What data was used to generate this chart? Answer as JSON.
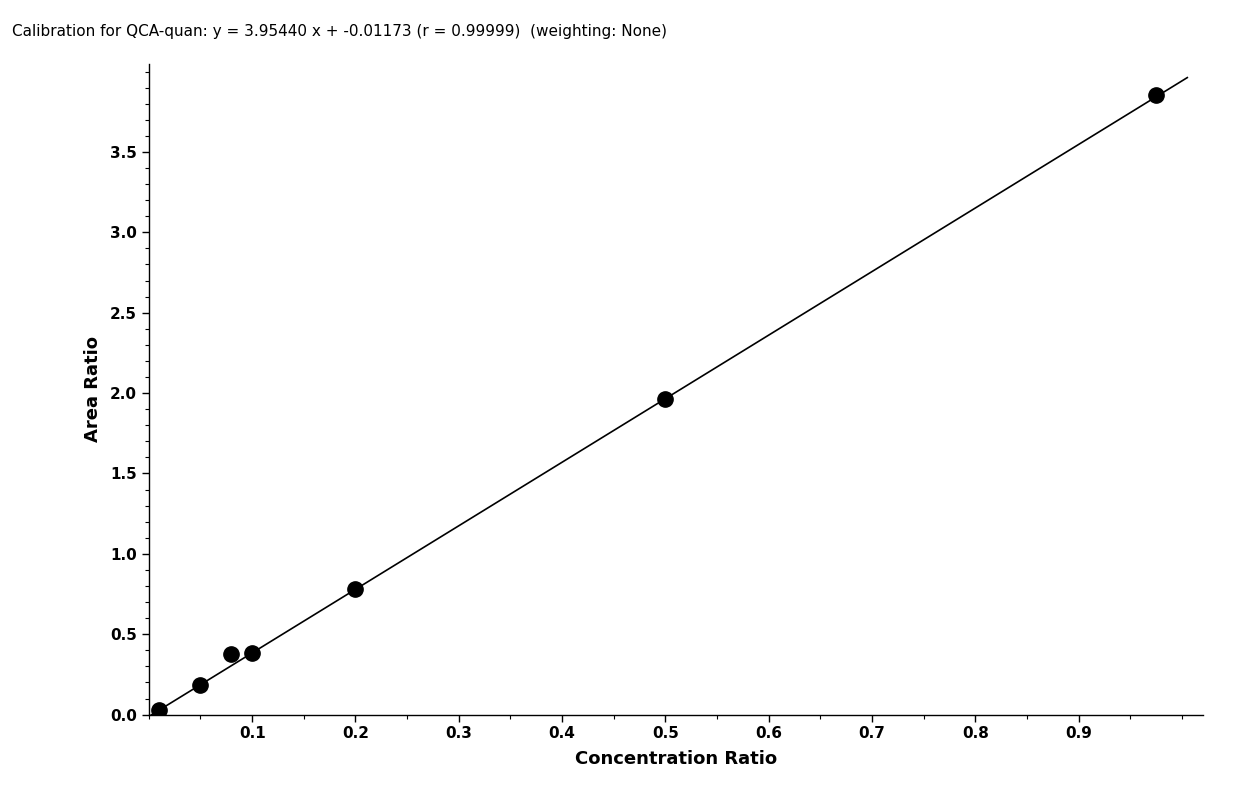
{
  "title": "Calibration for QCA-quan: y = 3.95440 x + -0.01173 (r = 0.99999)  (weighting: None)",
  "xlabel": "Concentration Ratio",
  "ylabel": "Area Ratio",
  "slope": 3.9544,
  "intercept": -0.01173,
  "data_points_x": [
    0.01,
    0.05,
    0.08,
    0.1,
    0.2,
    0.5,
    0.975
  ],
  "data_points_y": [
    0.028,
    0.186,
    0.38,
    0.383,
    0.779,
    1.965,
    3.854
  ],
  "xlim": [
    0.0,
    1.02
  ],
  "ylim": [
    0.0,
    4.05
  ],
  "xticks": [
    0.1,
    0.2,
    0.3,
    0.4,
    0.5,
    0.6,
    0.7,
    0.8,
    0.9
  ],
  "yticks": [
    0.0,
    0.5,
    1.0,
    1.5,
    2.0,
    2.5,
    3.0,
    3.5
  ],
  "line_color": "#000000",
  "marker_color": "#000000",
  "marker_size": 11,
  "title_fontsize": 11,
  "label_fontsize": 13,
  "tick_fontsize": 11,
  "background_color": "#ffffff"
}
